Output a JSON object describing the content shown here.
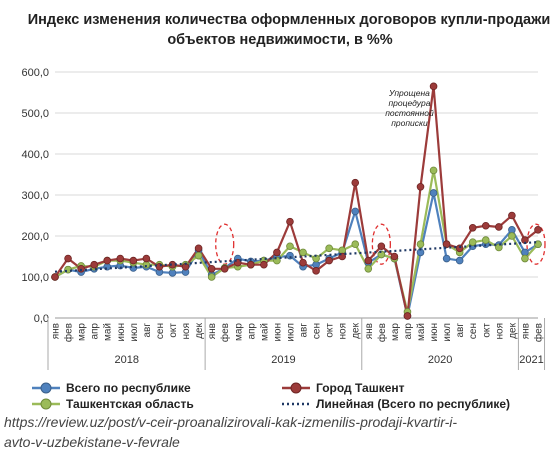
{
  "title_line1": "Индекс изменения количества оформленных договоров купли-продажи",
  "title_line2": "объектов недвижимости, в %%",
  "source_line1": "https://review.uz/post/v-ceir-proanalizirovali-kak-izmenilis-prodaji-kvartir-i-",
  "source_line2": "avto-v-uzbekistane-v-fevrale",
  "colors": {
    "republic": "#4f81bd",
    "tashkent_city": "#9c3b3a",
    "tashkent_region": "#9bbb59",
    "trend": "#1f3864",
    "highlight": "#e03030"
  },
  "legend": {
    "republic": "Всего по республике",
    "tashkent_city": "Город Ташкент",
    "tashkent_region": "Ташкентская область",
    "trend": "Линейная (Всего по республике)"
  },
  "chart_data": {
    "type": "line",
    "title": "Индекс изменения количества оформленных договоров купли-продажи объектов недвижимости, в %%",
    "categories": [
      "янв",
      "фев",
      "мар",
      "апр",
      "май",
      "июн",
      "июл",
      "авг",
      "сен",
      "окт",
      "ноя",
      "дек",
      "янв",
      "фев",
      "мар",
      "апр",
      "май",
      "июн",
      "июл",
      "авг",
      "сен",
      "окт",
      "ноя",
      "дек",
      "янв",
      "фев",
      "мар",
      "апр",
      "май",
      "июн",
      "июл",
      "авг",
      "сен",
      "окт",
      "ноя",
      "дек",
      "янв",
      "фев"
    ],
    "years": [
      {
        "label": "2018",
        "start": 0,
        "end": 11
      },
      {
        "label": "2019",
        "start": 12,
        "end": 23
      },
      {
        "label": "2020",
        "start": 24,
        "end": 35
      },
      {
        "label": "2021",
        "start": 36,
        "end": 37
      }
    ],
    "ylim": [
      0,
      600
    ],
    "yticks": [
      0,
      100,
      200,
      300,
      400,
      500,
      600
    ],
    "ytick_labels": [
      "0,0",
      "100,0",
      "200,0",
      "300,0",
      "400,0",
      "500,0",
      "600,0"
    ],
    "grid": true,
    "legend_position": "bottom",
    "series": [
      {
        "name": "Всего по республике",
        "key": "republic",
        "values": [
          100,
          118,
          112,
          120,
          125,
          128,
          122,
          125,
          112,
          110,
          112,
          165,
          105,
          122,
          145,
          138,
          140,
          148,
          152,
          125,
          130,
          145,
          160,
          260,
          135,
          155,
          145,
          5,
          160,
          305,
          145,
          140,
          175,
          180,
          178,
          215,
          160,
          180
        ]
      },
      {
        "name": "Город Ташкент",
        "key": "tashkent_city",
        "values": [
          100,
          145,
          120,
          130,
          140,
          145,
          140,
          145,
          125,
          130,
          125,
          170,
          120,
          120,
          135,
          130,
          130,
          160,
          235,
          135,
          115,
          140,
          150,
          330,
          140,
          175,
          150,
          5,
          320,
          565,
          180,
          170,
          220,
          225,
          222,
          250,
          190,
          215
        ]
      },
      {
        "name": "Ташкентская область",
        "key": "tashkent_region",
        "values": [
          100,
          118,
          127,
          125,
          140,
          140,
          135,
          130,
          130,
          125,
          130,
          152,
          100,
          122,
          125,
          130,
          140,
          140,
          175,
          160,
          145,
          170,
          165,
          180,
          120,
          155,
          145,
          15,
          180,
          360,
          180,
          160,
          185,
          190,
          172,
          200,
          145,
          180
        ]
      }
    ],
    "trendline": {
      "name": "Линейная (Всего по республике)",
      "start": 113,
      "end": 185
    },
    "annotation": "Упрощена процедура постоянной прописки",
    "highlighted_months": [
      13,
      25,
      37
    ]
  }
}
